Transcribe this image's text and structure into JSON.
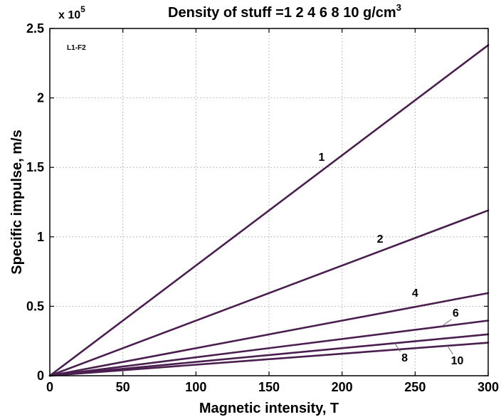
{
  "chart_data": {
    "type": "line",
    "title": "Density of stuff =1  2  4  6  8 10 g/cm",
    "title_superscript": "3",
    "corner_note": "L1-F2",
    "xlabel": "Magnetic intensity, T",
    "ylabel": "Specific impulse, m/s",
    "y_multiplier_base": "x 10",
    "y_multiplier_exp": "5",
    "xlim": [
      0,
      300
    ],
    "ylim": [
      0,
      2.5
    ],
    "x_ticks": [
      0,
      50,
      100,
      150,
      200,
      250,
      300
    ],
    "x_tick_labels": [
      "0",
      "50",
      "100",
      "150",
      "200",
      "250",
      "300"
    ],
    "y_ticks": [
      0,
      0.5,
      1,
      1.5,
      2,
      2.5
    ],
    "y_tick_labels": [
      "0",
      "0.5",
      "1",
      "1.5",
      "2",
      "2.5"
    ],
    "grid": true,
    "line_color": "#4a1f4f",
    "series": [
      {
        "label": "1",
        "x": [
          0,
          300
        ],
        "y": [
          0,
          2.38
        ]
      },
      {
        "label": "2",
        "x": [
          0,
          300
        ],
        "y": [
          0,
          1.19
        ]
      },
      {
        "label": "4",
        "x": [
          0,
          300
        ],
        "y": [
          0,
          0.595
        ]
      },
      {
        "label": "6",
        "x": [
          0,
          300
        ],
        "y": [
          0,
          0.397
        ]
      },
      {
        "label": "8",
        "x": [
          0,
          300
        ],
        "y": [
          0,
          0.298
        ]
      },
      {
        "label": "10",
        "x": [
          0,
          300
        ],
        "y": [
          0,
          0.238
        ]
      }
    ]
  }
}
